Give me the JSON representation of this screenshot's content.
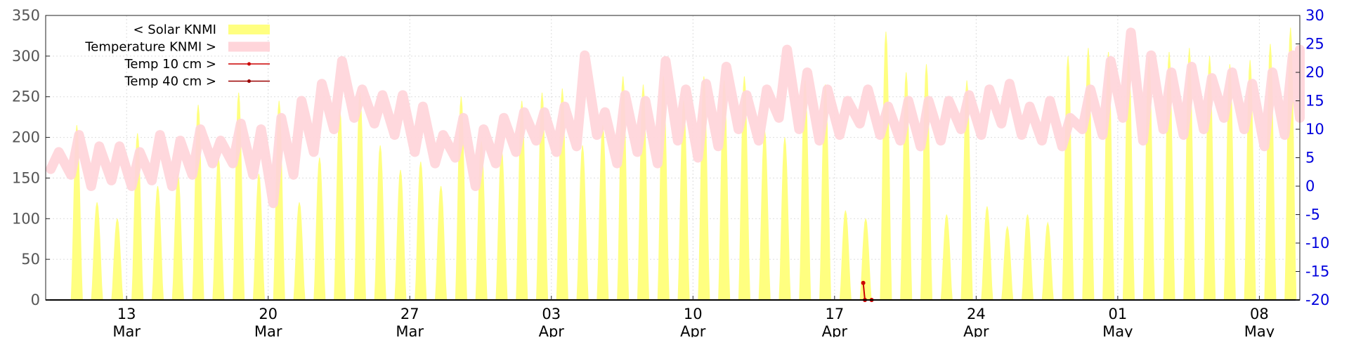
{
  "chart_data": {
    "type": "line",
    "x_axis": {
      "type": "date",
      "range": [
        "2024-03-09",
        "2024-05-10"
      ],
      "ticks": [
        {
          "date": "2024-03-13",
          "day": "13",
          "month": "Mar"
        },
        {
          "date": "2024-03-20",
          "day": "20",
          "month": "Mar"
        },
        {
          "date": "2024-03-27",
          "day": "27",
          "month": "Mar"
        },
        {
          "date": "2024-04-03",
          "day": "03",
          "month": "Apr"
        },
        {
          "date": "2024-04-10",
          "day": "10",
          "month": "Apr"
        },
        {
          "date": "2024-04-17",
          "day": "17",
          "month": "Apr"
        },
        {
          "date": "2024-04-24",
          "day": "24",
          "month": "Apr"
        },
        {
          "date": "2024-05-01",
          "day": "01",
          "month": "May"
        },
        {
          "date": "2024-05-08",
          "day": "08",
          "month": "May"
        }
      ]
    },
    "y_left": {
      "range": [
        0,
        350
      ],
      "ticks": [
        0,
        50,
        100,
        150,
        200,
        250,
        300,
        350
      ],
      "color": "#555555"
    },
    "y_right": {
      "range": [
        -20,
        30
      ],
      "ticks": [
        -20,
        -15,
        -10,
        -5,
        0,
        5,
        10,
        15,
        20,
        25,
        30
      ],
      "color": "#0000dd"
    },
    "grid": true,
    "legend": {
      "placement": "top-left",
      "entries": [
        {
          "label": "< Solar KNMI",
          "series": "solar"
        },
        {
          "label": "Temperature KNMI >",
          "series": "temperature"
        },
        {
          "label": "Temp 10 cm >",
          "series": "temp10"
        },
        {
          "label": "Temp 40 cm >",
          "series": "temp40"
        }
      ]
    },
    "series": [
      {
        "key": "solar",
        "name": "< Solar KNMI",
        "axis": "left",
        "style": "filled-area",
        "color": "#ffff80",
        "daily_peak": [
          [
            "2024-03-10",
            215
          ],
          [
            "2024-03-11",
            120
          ],
          [
            "2024-03-12",
            100
          ],
          [
            "2024-03-13",
            205
          ],
          [
            "2024-03-14",
            140
          ],
          [
            "2024-03-15",
            155
          ],
          [
            "2024-03-16",
            240
          ],
          [
            "2024-03-17",
            175
          ],
          [
            "2024-03-18",
            255
          ],
          [
            "2024-03-19",
            155
          ],
          [
            "2024-03-20",
            245
          ],
          [
            "2024-03-21",
            120
          ],
          [
            "2024-03-22",
            175
          ],
          [
            "2024-03-23",
            235
          ],
          [
            "2024-03-24",
            255
          ],
          [
            "2024-03-25",
            190
          ],
          [
            "2024-03-26",
            160
          ],
          [
            "2024-03-27",
            170
          ],
          [
            "2024-03-28",
            140
          ],
          [
            "2024-03-29",
            250
          ],
          [
            "2024-03-30",
            195
          ],
          [
            "2024-03-31",
            185
          ],
          [
            "2024-04-01",
            245
          ],
          [
            "2024-04-02",
            255
          ],
          [
            "2024-04-03",
            260
          ],
          [
            "2024-04-04",
            190
          ],
          [
            "2024-04-05",
            215
          ],
          [
            "2024-04-06",
            275
          ],
          [
            "2024-04-07",
            265
          ],
          [
            "2024-04-08",
            275
          ],
          [
            "2024-04-09",
            245
          ],
          [
            "2024-04-10",
            275
          ],
          [
            "2024-04-11",
            270
          ],
          [
            "2024-04-12",
            275
          ],
          [
            "2024-04-13",
            210
          ],
          [
            "2024-04-14",
            200
          ],
          [
            "2024-04-15",
            270
          ],
          [
            "2024-04-16",
            265
          ],
          [
            "2024-04-17",
            110
          ],
          [
            "2024-04-18",
            100
          ],
          [
            "2024-04-19",
            330
          ],
          [
            "2024-04-20",
            280
          ],
          [
            "2024-04-21",
            290
          ],
          [
            "2024-04-22",
            105
          ],
          [
            "2024-04-23",
            270
          ],
          [
            "2024-04-24",
            115
          ],
          [
            "2024-04-25",
            90
          ],
          [
            "2024-04-26",
            105
          ],
          [
            "2024-04-27",
            95
          ],
          [
            "2024-04-28",
            300
          ],
          [
            "2024-04-29",
            310
          ],
          [
            "2024-04-30",
            305
          ],
          [
            "2024-05-01",
            300
          ],
          [
            "2024-05-02",
            300
          ],
          [
            "2024-05-03",
            305
          ],
          [
            "2024-05-04",
            310
          ],
          [
            "2024-05-05",
            300
          ],
          [
            "2024-05-06",
            290
          ],
          [
            "2024-05-07",
            295
          ],
          [
            "2024-05-08",
            315
          ],
          [
            "2024-05-09",
            335
          ]
        ]
      },
      {
        "key": "temperature",
        "name": "Temperature KNMI >",
        "axis": "right",
        "style": "thick-line",
        "color": "#ffd5da",
        "daily_min_max": [
          [
            "2024-03-09",
            3,
            6
          ],
          [
            "2024-03-10",
            2,
            9
          ],
          [
            "2024-03-11",
            0,
            7
          ],
          [
            "2024-03-12",
            1,
            7
          ],
          [
            "2024-03-13",
            0,
            6
          ],
          [
            "2024-03-14",
            1,
            9
          ],
          [
            "2024-03-15",
            0,
            8
          ],
          [
            "2024-03-16",
            2,
            10
          ],
          [
            "2024-03-17",
            4,
            8
          ],
          [
            "2024-03-18",
            4,
            11
          ],
          [
            "2024-03-19",
            2,
            10
          ],
          [
            "2024-03-20",
            -3,
            12
          ],
          [
            "2024-03-21",
            2,
            15
          ],
          [
            "2024-03-22",
            6,
            18
          ],
          [
            "2024-03-23",
            10,
            22
          ],
          [
            "2024-03-24",
            12,
            17
          ],
          [
            "2024-03-25",
            11,
            16
          ],
          [
            "2024-03-26",
            9,
            16
          ],
          [
            "2024-03-27",
            6,
            14
          ],
          [
            "2024-03-28",
            4,
            9
          ],
          [
            "2024-03-29",
            5,
            12
          ],
          [
            "2024-03-30",
            0,
            10
          ],
          [
            "2024-03-31",
            4,
            12
          ],
          [
            "2024-04-01",
            6,
            13
          ],
          [
            "2024-04-02",
            8,
            13
          ],
          [
            "2024-04-03",
            6,
            14
          ],
          [
            "2024-04-04",
            7,
            23
          ],
          [
            "2024-04-05",
            9,
            13
          ],
          [
            "2024-04-06",
            4,
            16
          ],
          [
            "2024-04-07",
            6,
            15
          ],
          [
            "2024-04-08",
            4,
            22
          ],
          [
            "2024-04-09",
            8,
            17
          ],
          [
            "2024-04-10",
            5,
            18
          ],
          [
            "2024-04-11",
            7,
            21
          ],
          [
            "2024-04-12",
            10,
            16
          ],
          [
            "2024-04-13",
            8,
            17
          ],
          [
            "2024-04-14",
            12,
            24
          ],
          [
            "2024-04-15",
            10,
            20
          ],
          [
            "2024-04-16",
            8,
            17
          ],
          [
            "2024-04-17",
            9,
            15
          ],
          [
            "2024-04-18",
            11,
            17
          ],
          [
            "2024-04-19",
            9,
            14
          ],
          [
            "2024-04-20",
            8,
            15
          ],
          [
            "2024-04-21",
            7,
            15
          ],
          [
            "2024-04-22",
            8,
            15
          ],
          [
            "2024-04-23",
            10,
            16
          ],
          [
            "2024-04-24",
            9,
            17
          ],
          [
            "2024-04-25",
            11,
            18
          ],
          [
            "2024-04-26",
            9,
            14
          ],
          [
            "2024-04-27",
            8,
            15
          ],
          [
            "2024-04-28",
            7,
            12
          ],
          [
            "2024-04-29",
            10,
            17
          ],
          [
            "2024-04-30",
            9,
            22
          ],
          [
            "2024-05-01",
            12,
            27
          ],
          [
            "2024-05-02",
            8,
            23
          ],
          [
            "2024-05-03",
            10,
            20
          ],
          [
            "2024-05-04",
            9,
            21
          ],
          [
            "2024-05-05",
            10,
            19
          ],
          [
            "2024-05-06",
            12,
            20
          ],
          [
            "2024-05-07",
            10,
            18
          ],
          [
            "2024-05-08",
            7,
            20
          ],
          [
            "2024-05-09",
            9,
            23
          ],
          [
            "2024-05-10",
            12,
            24
          ]
        ]
      },
      {
        "key": "temp10",
        "name": "Temp 10 cm >",
        "axis": "right",
        "style": "line-marker",
        "color": "#cc0000",
        "points": [
          [
            "2024-04-18T10:00",
            -17
          ],
          [
            "2024-04-18T12:00",
            -20
          ],
          [
            "2024-04-18T20:00",
            -20
          ]
        ]
      },
      {
        "key": "temp40",
        "name": "Temp 40 cm >",
        "axis": "right",
        "style": "line-marker",
        "color": "#990000",
        "points": []
      }
    ]
  }
}
